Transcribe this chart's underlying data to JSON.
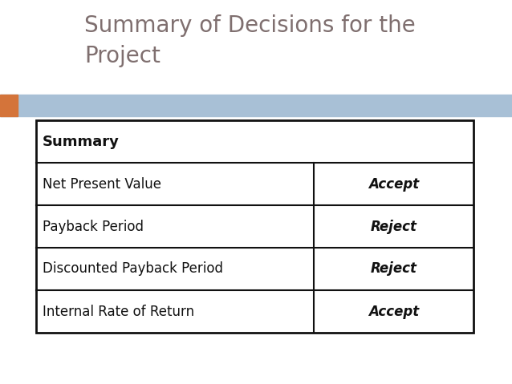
{
  "title_line1": "Summary of Decisions for the",
  "title_line2": "Project",
  "title_color": "#7f6f6f",
  "title_fontsize": 20,
  "background_color": "#ffffff",
  "header_bar_color": "#a8c0d6",
  "orange_accent_color": "#d4743a",
  "table_header": "Summary",
  "rows": [
    [
      "Net Present Value",
      "Accept"
    ],
    [
      "Payback Period",
      "Reject"
    ],
    [
      "Discounted Payback Period",
      "Reject"
    ],
    [
      "Internal Rate of Return",
      "Accept"
    ]
  ],
  "border_color": "#111111",
  "border_lw": 1.5,
  "row_label_fontsize": 12,
  "decision_fontsize": 12,
  "header_fontsize": 13
}
